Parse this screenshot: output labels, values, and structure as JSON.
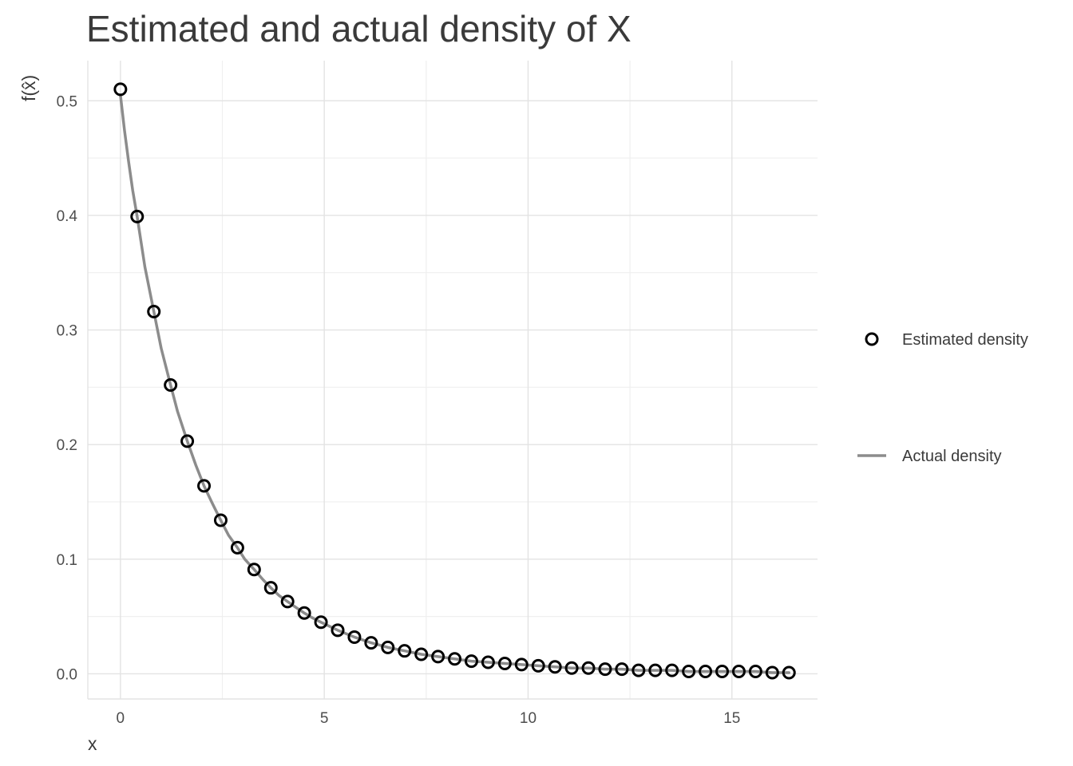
{
  "chart_data": {
    "type": "scatter",
    "title": "Estimated and actual density of X",
    "xlabel": "x",
    "ylabel": "f(x̂)",
    "xlim": [
      -0.8,
      17.1
    ],
    "ylim": [
      -0.022,
      0.535
    ],
    "x_ticks": [
      0,
      5,
      10,
      15
    ],
    "y_ticks": [
      0.0,
      0.1,
      0.2,
      0.3,
      0.4,
      0.5
    ],
    "x_tick_labels": [
      "0",
      "5",
      "10",
      "15"
    ],
    "y_tick_labels": [
      "0.0",
      "0.1",
      "0.2",
      "0.3",
      "0.4",
      "0.5"
    ],
    "grid": true,
    "legend_position": "right",
    "series": [
      {
        "name": "Estimated density",
        "kind": "points",
        "marker": "open-circle",
        "color": "#000000",
        "x": [
          0.0,
          0.41,
          0.82,
          1.23,
          1.64,
          2.05,
          2.46,
          2.87,
          3.28,
          3.69,
          4.1,
          4.51,
          4.92,
          5.33,
          5.74,
          6.15,
          6.56,
          6.97,
          7.38,
          7.79,
          8.2,
          8.61,
          9.02,
          9.43,
          9.84,
          10.25,
          10.66,
          11.07,
          11.48,
          11.89,
          12.3,
          12.71,
          13.12,
          13.53,
          13.94,
          14.35,
          14.76,
          15.17,
          15.58,
          15.99,
          16.4
        ],
        "y": [
          0.51,
          0.399,
          0.316,
          0.252,
          0.203,
          0.164,
          0.134,
          0.11,
          0.091,
          0.075,
          0.063,
          0.053,
          0.045,
          0.038,
          0.032,
          0.027,
          0.023,
          0.02,
          0.017,
          0.015,
          0.013,
          0.011,
          0.01,
          0.009,
          0.008,
          0.007,
          0.006,
          0.005,
          0.005,
          0.004,
          0.004,
          0.003,
          0.003,
          0.003,
          0.002,
          0.002,
          0.002,
          0.002,
          0.002,
          0.001,
          0.001
        ]
      },
      {
        "name": "Actual density",
        "kind": "line",
        "color": "#8c8c8c",
        "x": [
          0.0,
          0.1,
          0.2,
          0.3,
          0.41,
          0.6,
          0.82,
          1.0,
          1.23,
          1.4,
          1.64,
          1.85,
          2.05,
          2.25,
          2.46,
          2.65,
          2.87,
          3.05,
          3.28,
          3.5,
          3.69,
          3.9,
          4.1,
          4.3,
          4.51,
          4.7,
          4.92,
          5.33,
          5.74,
          6.15,
          6.56,
          6.97,
          7.38,
          7.79,
          8.2,
          8.61,
          9.02,
          9.43,
          9.84,
          10.25,
          10.66,
          11.07,
          11.48,
          11.89,
          12.3,
          12.71,
          13.12,
          13.53,
          13.94,
          14.35,
          14.76,
          15.17,
          15.58,
          15.99,
          16.4
        ],
        "y": [
          0.505,
          0.474,
          0.447,
          0.422,
          0.399,
          0.355,
          0.316,
          0.284,
          0.252,
          0.229,
          0.203,
          0.182,
          0.164,
          0.149,
          0.134,
          0.121,
          0.11,
          0.1,
          0.091,
          0.082,
          0.075,
          0.068,
          0.063,
          0.058,
          0.053,
          0.049,
          0.045,
          0.038,
          0.032,
          0.027,
          0.023,
          0.02,
          0.017,
          0.015,
          0.013,
          0.011,
          0.01,
          0.009,
          0.008,
          0.007,
          0.006,
          0.005,
          0.005,
          0.004,
          0.004,
          0.003,
          0.003,
          0.003,
          0.002,
          0.002,
          0.002,
          0.002,
          0.002,
          0.001,
          0.001
        ]
      }
    ]
  }
}
